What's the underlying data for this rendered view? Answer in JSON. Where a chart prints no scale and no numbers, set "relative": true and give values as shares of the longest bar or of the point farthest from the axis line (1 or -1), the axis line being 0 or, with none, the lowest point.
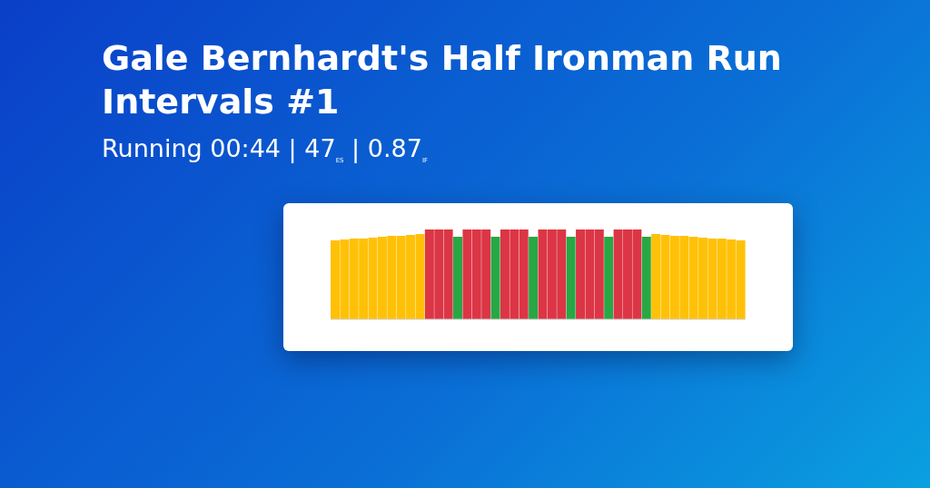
{
  "chart_data": {
    "type": "bar",
    "title": "Gale Bernhardt's Half Ironman Run Intervals #1",
    "subtitle": "Running 00:44 | 47$_{ES}$ | 0.87$_{IF}$",
    "relative": true,
    "categories": [
      null,
      null,
      null,
      null,
      null,
      null,
      null,
      null,
      null,
      null,
      null,
      null,
      null,
      null,
      null,
      null,
      null,
      null,
      null,
      null,
      null,
      null,
      null,
      null,
      null,
      null,
      null,
      null,
      null,
      null,
      null,
      null,
      null,
      null,
      null,
      null,
      null,
      null,
      null,
      null,
      null,
      null,
      null,
      null
    ],
    "values": [
      0.88,
      0.89,
      0.9,
      0.9,
      0.91,
      0.92,
      0.93,
      0.93,
      0.94,
      0.95,
      1,
      1,
      1,
      0.92,
      1,
      1,
      1,
      0.92,
      1,
      1,
      1,
      0.92,
      1,
      1,
      1,
      0.92,
      1,
      1,
      1,
      0.92,
      1,
      1,
      1,
      0.92,
      0.95,
      0.94,
      0.93,
      0.93,
      0.92,
      0.91,
      0.9,
      0.9,
      0.89,
      0.88
    ],
    "colors": [
      "#ffc107",
      "#ffc107",
      "#ffc107",
      "#ffc107",
      "#ffc107",
      "#ffc107",
      "#ffc107",
      "#ffc107",
      "#ffc107",
      "#ffc107",
      "#dc3545",
      "#dc3545",
      "#dc3545",
      "#28a745",
      "#dc3545",
      "#dc3545",
      "#dc3545",
      "#28a745",
      "#dc3545",
      "#dc3545",
      "#dc3545",
      "#28a745",
      "#dc3545",
      "#dc3545",
      "#dc3545",
      "#28a745",
      "#dc3545",
      "#dc3545",
      "#dc3545",
      "#28a745",
      "#dc3545",
      "#dc3545",
      "#dc3545",
      "#28a745",
      "#ffc107",
      "#ffc107",
      "#ffc107",
      "#ffc107",
      "#ffc107",
      "#ffc107",
      "#ffc107",
      "#ffc107",
      "#ffc107",
      "#ffc107"
    ]
  }
}
